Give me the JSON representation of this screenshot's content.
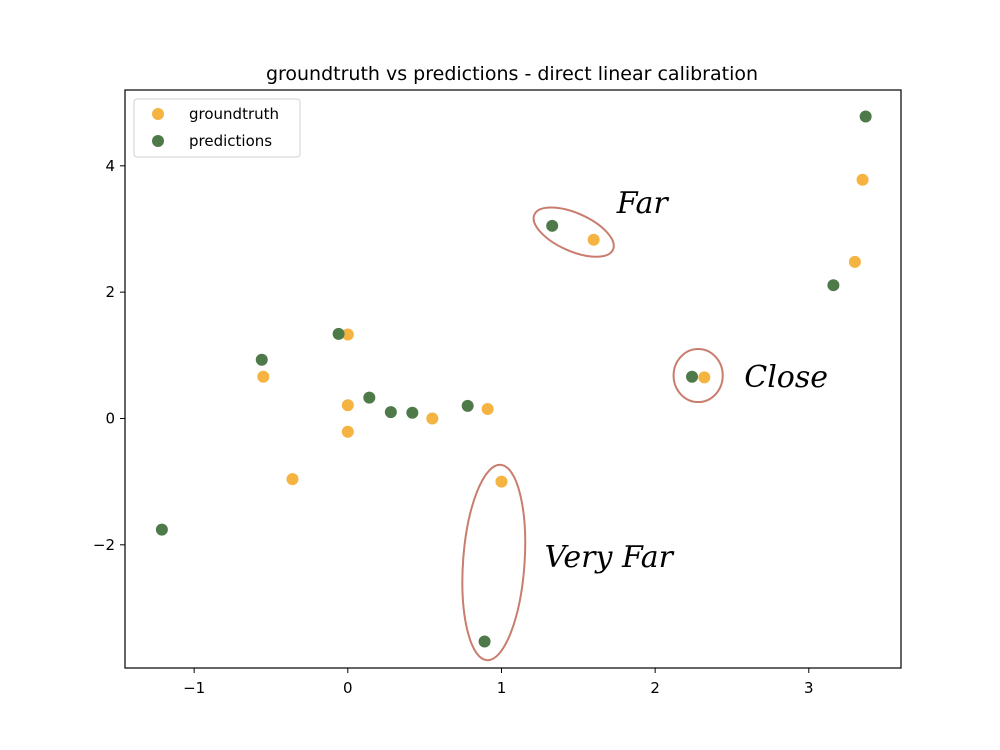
{
  "chart_data": {
    "type": "scatter",
    "title": "groundtruth vs predictions - direct linear calibration",
    "xlabel": "",
    "ylabel": "",
    "xlim": [
      -1.45,
      3.6
    ],
    "ylim": [
      -3.95,
      5.2
    ],
    "xticks": [
      -1,
      0,
      1,
      2,
      3
    ],
    "xtick_labels": [
      "−1",
      "0",
      "1",
      "2",
      "3"
    ],
    "yticks": [
      -2,
      0,
      2,
      4
    ],
    "ytick_labels": [
      "−2",
      "0",
      "2",
      "4"
    ],
    "grid": false,
    "legend_position": "top-left",
    "series": [
      {
        "name": "groundtruth",
        "color": "#f5b342",
        "points": [
          [
            -0.55,
            0.66
          ],
          [
            -0.36,
            -0.96
          ],
          [
            0.0,
            1.33
          ],
          [
            0.0,
            0.21
          ],
          [
            0.0,
            -0.21
          ],
          [
            0.55,
            0.0
          ],
          [
            0.91,
            0.15
          ],
          [
            1.0,
            -1.0
          ],
          [
            1.6,
            2.83
          ],
          [
            2.32,
            0.65
          ],
          [
            3.3,
            2.48
          ],
          [
            3.35,
            3.78
          ]
        ]
      },
      {
        "name": "predictions",
        "color": "#4e7a4a",
        "points": [
          [
            -1.21,
            -1.76
          ],
          [
            -0.56,
            0.93
          ],
          [
            -0.06,
            1.34
          ],
          [
            0.14,
            0.33
          ],
          [
            0.28,
            0.1
          ],
          [
            0.42,
            0.09
          ],
          [
            0.78,
            0.2
          ],
          [
            0.89,
            -3.53
          ],
          [
            1.33,
            3.05
          ],
          [
            2.24,
            0.66
          ],
          [
            3.16,
            2.11
          ],
          [
            3.37,
            4.78
          ]
        ]
      }
    ],
    "annotations": [
      {
        "text": "Far",
        "color": "#c97d6e",
        "ellipse": {
          "cx": 1.47,
          "cy": 2.95,
          "rx": 0.28,
          "ry": 0.3,
          "rotate": 24
        }
      },
      {
        "text": "Close",
        "color": "#c97d6e",
        "ellipse": {
          "cx": 2.28,
          "cy": 0.68,
          "rx": 0.16,
          "ry": 0.42,
          "rotate": 0
        }
      },
      {
        "text": "Very Far",
        "color": "#c97d6e",
        "ellipse": {
          "cx": 0.95,
          "cy": -2.28,
          "rx": 0.2,
          "ry": 1.55,
          "rotate": 4
        }
      }
    ]
  }
}
